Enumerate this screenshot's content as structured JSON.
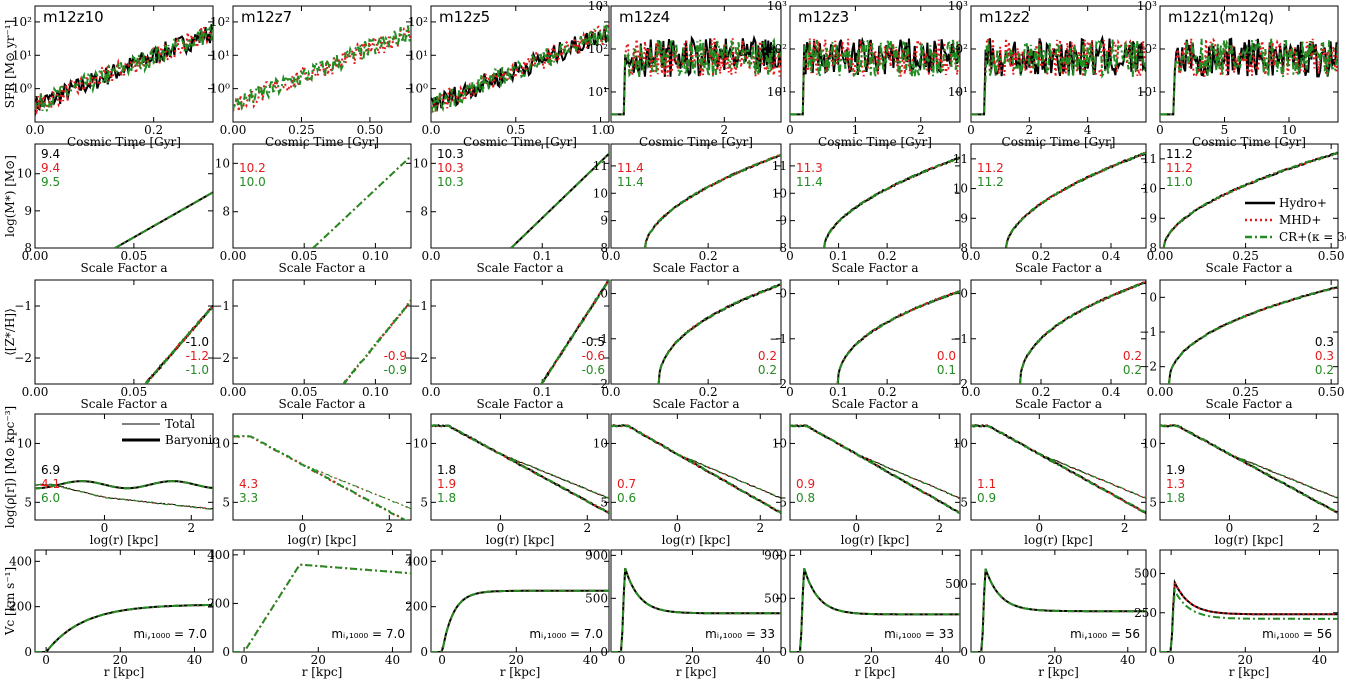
{
  "colors": {
    "hydro": "#000000",
    "mhd": "#e41a1c",
    "cr": "#228b22"
  },
  "legend": [
    "Hydro+",
    "MHD+",
    "CR+(κ = 3e29)"
  ],
  "profile_legend": [
    "Total",
    "Baryonic"
  ],
  "row_labels": [
    "SFR [M⊙ yr⁻¹]",
    "log(M*) [M⊙]",
    "⟨[Z*/H]⟩",
    "log(ρ[r]) [M⊙ kpc⁻³]",
    "Vc [km s⁻¹]"
  ],
  "x_labels": [
    "Cosmic Time [Gyr]",
    "Scale Factor a",
    "Scale Factor a",
    "log(r) [kpc]",
    "r [kpc]"
  ],
  "chart_data": [
    {
      "type": "line",
      "title": "m12z10",
      "row_ylims": [
        [
          0.1,
          300
        ],
        [
          8,
          10.8
        ],
        [
          -2.5,
          -0.5
        ],
        [
          3.5,
          12.5
        ],
        [
          0,
          450
        ]
      ],
      "xlims": [
        [
          0,
          0.3
        ],
        [
          0,
          0.09
        ],
        [
          0,
          0.09
        ],
        [
          -1.6,
          2.5
        ],
        [
          -3,
          45
        ]
      ],
      "xticks": [
        [
          0,
          0.2
        ],
        [
          0,
          0.05
        ],
        [
          0,
          0.05
        ],
        [
          0,
          2
        ],
        [
          0,
          20,
          40
        ]
      ],
      "xticklabels": [
        [
          "0.0",
          "0.2"
        ],
        [
          "0.00",
          "0.05"
        ],
        [
          "0.00",
          "0.05"
        ],
        [
          "0",
          "2"
        ],
        [
          "0",
          "20",
          "40"
        ]
      ],
      "yticks": [
        [
          1,
          10,
          100
        ],
        [
          8,
          9,
          10
        ],
        [
          -2,
          -1
        ],
        [
          5,
          10
        ],
        [
          0,
          200,
          400
        ]
      ],
      "yticklabels": [
        [
          "10⁰",
          "10¹",
          "10²"
        ],
        [
          "8",
          "9",
          "10"
        ],
        [
          "−2",
          "−1"
        ],
        [
          "5",
          "10"
        ],
        [
          "0",
          "200",
          "400"
        ]
      ],
      "notes": {
        "mstar": [
          "9.4",
          "9.4",
          "9.5"
        ],
        "z": [
          "-1.0",
          "-1.2",
          "-1.0"
        ],
        "rho": [
          "6.9",
          "4.1",
          "6.0"
        ]
      },
      "mi": "m_{i,1000} = 7.0"
    },
    {
      "type": "line",
      "title": "m12z7",
      "row_ylims": [
        [
          0.1,
          300
        ],
        [
          6.5,
          10.8
        ],
        [
          -2.5,
          -0.5
        ],
        [
          3.5,
          12.5
        ],
        [
          0,
          420
        ]
      ],
      "xlims": [
        [
          0,
          0.65
        ],
        [
          0,
          0.125
        ],
        [
          0,
          0.125
        ],
        [
          -1.6,
          2.5
        ],
        [
          -3,
          45
        ]
      ],
      "xticks": [
        [
          0,
          0.25,
          0.5
        ],
        [
          0,
          0.05,
          0.1
        ],
        [
          0,
          0.05,
          0.1
        ],
        [
          0,
          2
        ],
        [
          0,
          20,
          40
        ]
      ],
      "xticklabels": [
        [
          "0.00",
          "0.25",
          "0.50"
        ],
        [
          "0.00",
          "0.05",
          "0.10"
        ],
        [
          "0.00",
          "0.05",
          "0.10"
        ],
        [
          "0",
          "2"
        ],
        [
          "0",
          "20",
          "40"
        ]
      ],
      "yticks": [
        [
          1,
          10,
          100
        ],
        [
          8,
          10
        ],
        [
          -2,
          -1
        ],
        [
          5,
          10
        ],
        [
          0,
          200,
          400
        ]
      ],
      "yticklabels": [
        [
          "10⁰",
          "10¹",
          "10²"
        ],
        [
          "8",
          "10"
        ],
        [
          "−2",
          "−1"
        ],
        [
          "5",
          "10"
        ],
        [
          "0",
          "200",
          "400"
        ]
      ],
      "notes": {
        "mstar": [
          "",
          "10.2",
          "10.0"
        ],
        "z": [
          "",
          "-0.9",
          "-0.9"
        ],
        "rho": [
          "",
          "4.3",
          "3.3"
        ]
      },
      "mi": "m_{i,1000} = 7.0"
    },
    {
      "type": "line",
      "title": "m12z5",
      "row_ylims": [
        [
          0.1,
          300
        ],
        [
          6.5,
          10.8
        ],
        [
          -2.5,
          -0.5
        ],
        [
          3.5,
          12.5
        ],
        [
          0,
          450
        ]
      ],
      "xlims": [
        [
          0,
          1.05
        ],
        [
          0,
          0.16
        ],
        [
          0,
          0.16
        ],
        [
          -1.6,
          2.5
        ],
        [
          -3,
          45
        ]
      ],
      "xticks": [
        [
          0,
          0.5,
          1
        ],
        [
          0,
          0.1
        ],
        [
          0,
          0.1
        ],
        [
          0,
          2
        ],
        [
          0,
          20,
          40
        ]
      ],
      "xticklabels": [
        [
          "0.0",
          "0.5",
          "1.0"
        ],
        [
          "0.0",
          "0.1"
        ],
        [
          "0.0",
          "0.1"
        ],
        [
          "0",
          "2"
        ],
        [
          "0",
          "20",
          "40"
        ]
      ],
      "yticks": [
        [
          1,
          10,
          100
        ],
        [
          8,
          10
        ],
        [
          -2,
          -1
        ],
        [
          5,
          10
        ],
        [
          0,
          200,
          400
        ]
      ],
      "yticklabels": [
        [
          "10⁰",
          "10¹",
          "10²"
        ],
        [
          "8",
          "10"
        ],
        [
          "−2",
          "−1"
        ],
        [
          "5",
          "10"
        ],
        [
          "0",
          "200",
          "400"
        ]
      ],
      "notes": {
        "mstar": [
          "10.3",
          "10.3",
          "10.3"
        ],
        "z": [
          "-0.5",
          "-0.6",
          "-0.6"
        ],
        "rho": [
          "1.8",
          "1.9",
          "1.8"
        ]
      },
      "mi": "m_{i,1000} = 7.0"
    },
    {
      "type": "line",
      "title": "m12z4",
      "row_ylims": [
        [
          2,
          1000
        ],
        [
          8,
          11.8
        ],
        [
          -2,
          0.3
        ],
        [
          3.5,
          12.5
        ],
        [
          0,
          950
        ]
      ],
      "xlims": [
        [
          0,
          3
        ],
        [
          0,
          0.35
        ],
        [
          0,
          0.35
        ],
        [
          -1.6,
          2.5
        ],
        [
          -3,
          45
        ]
      ],
      "xticks": [
        [
          0,
          2
        ],
        [
          0,
          0.2
        ],
        [
          0,
          0.2
        ],
        [
          0,
          2
        ],
        [
          0,
          20,
          40
        ]
      ],
      "xticklabels": [
        [
          "0",
          "2"
        ],
        [
          "0.0",
          "0.2"
        ],
        [
          "0.0",
          "0.2"
        ],
        [
          "0",
          "2"
        ],
        [
          "0",
          "20",
          "40"
        ]
      ],
      "yticks": [
        [
          10,
          100,
          1000
        ],
        [
          8,
          9,
          10,
          11
        ],
        [
          -2,
          -1,
          0
        ],
        [
          5,
          10
        ],
        [
          0,
          500,
          900
        ]
      ],
      "yticklabels": [
        [
          "10¹",
          "10²",
          "10³"
        ],
        [
          "8",
          "9",
          "10",
          "11"
        ],
        [
          "−2",
          "−1",
          "0"
        ],
        [
          "5",
          "10"
        ],
        [
          "0",
          "500",
          "900"
        ]
      ],
      "notes": {
        "mstar": [
          "",
          "11.4",
          "11.4"
        ],
        "z": [
          "",
          "0.2",
          "0.2"
        ],
        "rho": [
          "",
          "0.7",
          "0.6"
        ]
      },
      "mi": "m_{i,1000} = 33"
    },
    {
      "type": "line",
      "title": "m12z3",
      "row_ylims": [
        [
          2,
          1000
        ],
        [
          8,
          11.8
        ],
        [
          -2,
          0.3
        ],
        [
          3.5,
          12.5
        ],
        [
          0,
          950
        ]
      ],
      "xlims": [
        [
          0,
          2.6
        ],
        [
          0,
          0.35
        ],
        [
          0,
          0.35
        ],
        [
          -1.6,
          2.5
        ],
        [
          -3,
          45
        ]
      ],
      "xticks": [
        [
          0,
          1,
          2
        ],
        [
          0,
          0.1,
          0.2
        ],
        [
          0,
          0.1,
          0.2
        ],
        [
          0,
          2
        ],
        [
          0,
          20,
          40
        ]
      ],
      "xticklabels": [
        [
          "0",
          "1",
          "2"
        ],
        [
          "0",
          "0.1",
          "0.2"
        ],
        [
          "0",
          "0.1",
          "0.2"
        ],
        [
          "0",
          "2"
        ],
        [
          "0",
          "20",
          "40"
        ]
      ],
      "yticks": [
        [
          10,
          100,
          1000
        ],
        [
          8,
          9,
          10,
          11
        ],
        [
          -2,
          -1,
          0
        ],
        [
          5,
          10
        ],
        [
          0,
          500,
          900
        ]
      ],
      "yticklabels": [
        [
          "10¹",
          "10²",
          "10³"
        ],
        [
          "8",
          "9",
          "10",
          "11"
        ],
        [
          "−2",
          "−1",
          "0"
        ],
        [
          "5",
          "10"
        ],
        [
          "0",
          "500",
          "900"
        ]
      ],
      "notes": {
        "mstar": [
          "",
          "11.3",
          "11.4"
        ],
        "z": [
          "",
          "0.0",
          "0.1"
        ],
        "rho": [
          "",
          "0.9",
          "0.8"
        ]
      },
      "mi": "m_{i,1000} = 33"
    },
    {
      "type": "line",
      "title": "m12z2",
      "row_ylims": [
        [
          2,
          1000
        ],
        [
          8,
          11.5
        ],
        [
          -2,
          0.3
        ],
        [
          3.5,
          12.5
        ],
        [
          0,
          750
        ]
      ],
      "xlims": [
        [
          0,
          6
        ],
        [
          0,
          0.5
        ],
        [
          0,
          0.5
        ],
        [
          -1.6,
          2.5
        ],
        [
          -3,
          45
        ]
      ],
      "xticks": [
        [
          0,
          2,
          4
        ],
        [
          0,
          0.2,
          0.4
        ],
        [
          0,
          0.2,
          0.4
        ],
        [
          0,
          2
        ],
        [
          0,
          20,
          40
        ]
      ],
      "xticklabels": [
        [
          "0",
          "2",
          "4"
        ],
        [
          "0.0",
          "0.2",
          "0.4"
        ],
        [
          "0.0",
          "0.2",
          "0.4"
        ],
        [
          "0",
          "2"
        ],
        [
          "0",
          "20",
          "40"
        ]
      ],
      "yticks": [
        [
          10,
          100,
          1000
        ],
        [
          8,
          9,
          10,
          11
        ],
        [
          -2,
          -1,
          0
        ],
        [
          5,
          10
        ],
        [
          0,
          500
        ]
      ],
      "yticklabels": [
        [
          "10¹",
          "10²",
          "10³"
        ],
        [
          "8",
          "9",
          "10",
          "11"
        ],
        [
          "−2",
          "−1",
          "0"
        ],
        [
          "5",
          "10"
        ],
        [
          "0",
          "500"
        ]
      ],
      "notes": {
        "mstar": [
          "",
          "11.2",
          "11.2"
        ],
        "z": [
          "",
          "0.2",
          "0.2"
        ],
        "rho": [
          "",
          "1.1",
          "0.9"
        ]
      },
      "mi": "m_{i,1000} = 56"
    },
    {
      "type": "line",
      "title": "m12z1(m12q)",
      "row_ylims": [
        [
          2,
          1000
        ],
        [
          8,
          11.5
        ],
        [
          -2.5,
          0.5
        ],
        [
          3.5,
          12.5
        ],
        [
          0,
          650
        ]
      ],
      "xlims": [
        [
          0,
          13.8
        ],
        [
          0,
          0.52
        ],
        [
          0,
          0.52
        ],
        [
          -1.6,
          2.5
        ],
        [
          -3,
          45
        ]
      ],
      "xticks": [
        [
          0,
          5,
          10
        ],
        [
          0,
          0.25,
          0.5
        ],
        [
          0,
          0.25,
          0.5
        ],
        [
          0,
          2
        ],
        [
          0,
          20,
          40
        ]
      ],
      "xticklabels": [
        [
          "0",
          "5",
          "10"
        ],
        [
          "0.00",
          "0.25",
          "0.50"
        ],
        [
          "0.00",
          "0.25",
          "0.50"
        ],
        [
          "0",
          "2"
        ],
        [
          "0",
          "20",
          "40"
        ]
      ],
      "yticks": [
        [
          10,
          100,
          1000
        ],
        [
          8,
          9,
          10,
          11
        ],
        [
          -2,
          -1,
          0
        ],
        [
          5,
          10
        ],
        [
          0,
          250,
          500
        ]
      ],
      "yticklabels": [
        [
          "10¹",
          "10²",
          "10³"
        ],
        [
          "8",
          "9",
          "10",
          "11"
        ],
        [
          "−2",
          "−1",
          "0"
        ],
        [
          "5",
          "10"
        ],
        [
          "0",
          "250",
          "500"
        ]
      ],
      "notes": {
        "mstar": [
          "11.2",
          "11.2",
          "11.0"
        ],
        "z": [
          "0.3",
          "0.3",
          "0.2"
        ],
        "rho": [
          "1.9",
          "1.3",
          "1.8"
        ]
      },
      "mi": "m_{i,1000} = 56"
    }
  ]
}
